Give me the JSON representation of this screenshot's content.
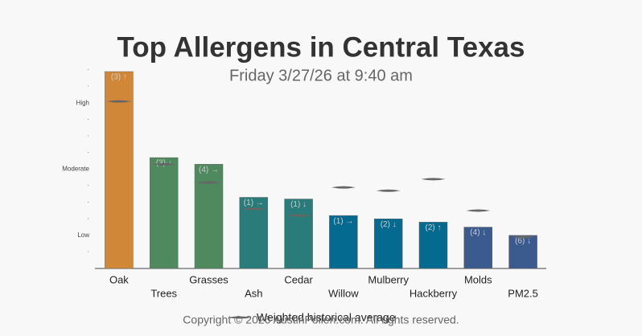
{
  "chart_data": {
    "type": "bar",
    "title": "Top Allergens in Central Texas",
    "subtitle": "Friday 3/27/26 at 9:40 am",
    "categories": [
      "Oak",
      "Trees",
      "Grasses",
      "Ash",
      "Cedar",
      "Willow",
      "Mulberry",
      "Hackberry",
      "Molds",
      "PM2.5"
    ],
    "values": [
      11.9,
      6.7,
      6.3,
      4.3,
      4.2,
      3.2,
      3.0,
      2.8,
      2.5,
      2.0
    ],
    "bar_annotations": [
      "(3) ↑",
      "(3) ↓",
      "(4) →",
      "(1) →",
      "(1) ↓",
      "(1) →",
      "(2) ↓",
      "(2) ↑",
      "(4) ↓",
      "(6) ↓"
    ],
    "colors": [
      "#d08838",
      "#4e8a5e",
      "#4e8a5e",
      "#2a7c7a",
      "#2a7c7a",
      "#056a90",
      "#056a90",
      "#056a90",
      "#3b5b8e",
      "#3b5b8e"
    ],
    "average": {
      "name": "Weighted historical average",
      "color": "#666666",
      "values": [
        10.1,
        6.3,
        5.2,
        3.6,
        3.2,
        4.9,
        4.7,
        5.4,
        3.5,
        1.9
      ]
    },
    "ylim": [
      0,
      12
    ],
    "yticks": [
      {
        "value": 1,
        "label": "·"
      },
      {
        "value": 2,
        "label": "Low"
      },
      {
        "value": 3,
        "label": "·"
      },
      {
        "value": 4,
        "label": "·"
      },
      {
        "value": 5,
        "label": "·"
      },
      {
        "value": 6,
        "label": "Moderate"
      },
      {
        "value": 7,
        "label": "·"
      },
      {
        "value": 8,
        "label": "·"
      },
      {
        "value": 9,
        "label": "·"
      },
      {
        "value": 10,
        "label": "High"
      },
      {
        "value": 11,
        "label": "·"
      },
      {
        "value": 12,
        "label": "·"
      }
    ],
    "grid": false,
    "footer": "Copyright © 2026 AustinPollen.com. All rights reserved."
  }
}
